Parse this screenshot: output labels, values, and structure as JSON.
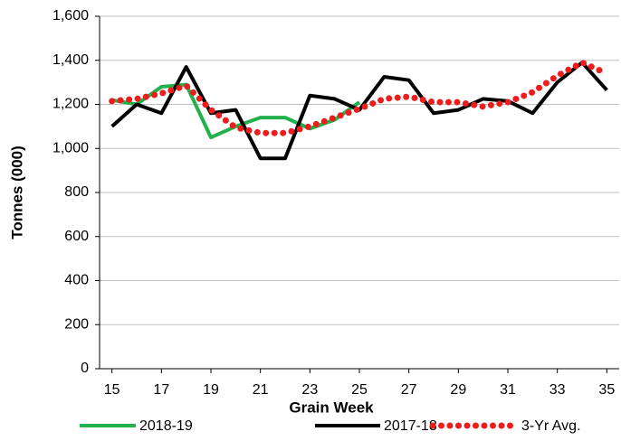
{
  "chart_data": {
    "type": "line",
    "xlabel": "Grain Week",
    "ylabel": "Tonnes (000)",
    "x": [
      15,
      16,
      17,
      18,
      19,
      20,
      21,
      22,
      23,
      24,
      25,
      26,
      27,
      28,
      29,
      30,
      31,
      32,
      33,
      34,
      35
    ],
    "xlim": [
      14.5,
      35.5
    ],
    "xticks": [
      15,
      17,
      19,
      21,
      23,
      25,
      27,
      29,
      31,
      33,
      35
    ],
    "ylim": [
      0,
      1600
    ],
    "yticks": [
      0,
      200,
      400,
      600,
      800,
      {
        "value": 1000,
        "label": "1,000"
      },
      {
        "value": 1200,
        "label": "1,200"
      },
      {
        "value": 1400,
        "label": "1,400"
      },
      {
        "value": 1600,
        "label": "1,600"
      }
    ],
    "grid": true,
    "legend": "bottom",
    "series": [
      {
        "name": "2018-19",
        "color": "#22b14c",
        "style": "solid",
        "values": [
          1220,
          1200,
          1280,
          1290,
          1050,
          1100,
          1140,
          1140,
          1090,
          1130,
          1210,
          null,
          null,
          null,
          null,
          null,
          null,
          null,
          null,
          null,
          null
        ]
      },
      {
        "name": "2017-18",
        "color": "#000000",
        "style": "solid",
        "values": [
          1100,
          1200,
          1160,
          1370,
          1160,
          1175,
          955,
          955,
          1240,
          1225,
          1175,
          1325,
          1310,
          1160,
          1175,
          1225,
          1215,
          1160,
          1300,
          1390,
          1265
        ]
      },
      {
        "name": "3-Yr Avg.",
        "color": "#ee1c1c",
        "style": "dotted",
        "values": [
          1215,
          1225,
          1250,
          1285,
          1175,
          1095,
          1070,
          1070,
          1100,
          1140,
          1180,
          1225,
          1235,
          1210,
          1210,
          1190,
          1210,
          1255,
          1330,
          1390,
          1340
        ]
      }
    ]
  }
}
